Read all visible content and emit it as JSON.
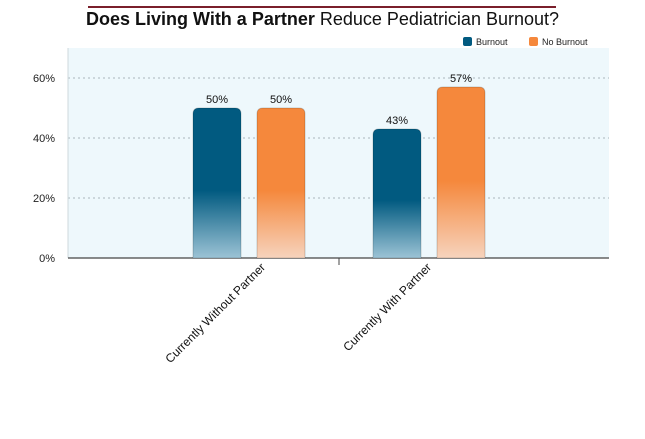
{
  "chart_data": {
    "type": "bar",
    "title": {
      "bold": "Does Living With a Partner",
      "normal": " Reduce Pediatrician Burnout?"
    },
    "categories": [
      "Currently Without Partner",
      "Currently With Partner"
    ],
    "series": [
      {
        "name": "Burnout",
        "values": [
          50,
          43
        ],
        "labels": [
          "50%",
          "43%"
        ],
        "color": "#015a80"
      },
      {
        "name": "No Burnout",
        "values": [
          50,
          57
        ],
        "labels": [
          "50%",
          "57%"
        ],
        "color": "#f5883c"
      }
    ],
    "ylim": [
      0,
      70
    ],
    "yticks": [
      0,
      20,
      40,
      60
    ],
    "ytick_labels": [
      "0%",
      "20%",
      "40%",
      "60%"
    ],
    "grid": true,
    "legend_position": "top-right",
    "plot_background": "#eef8fc"
  }
}
